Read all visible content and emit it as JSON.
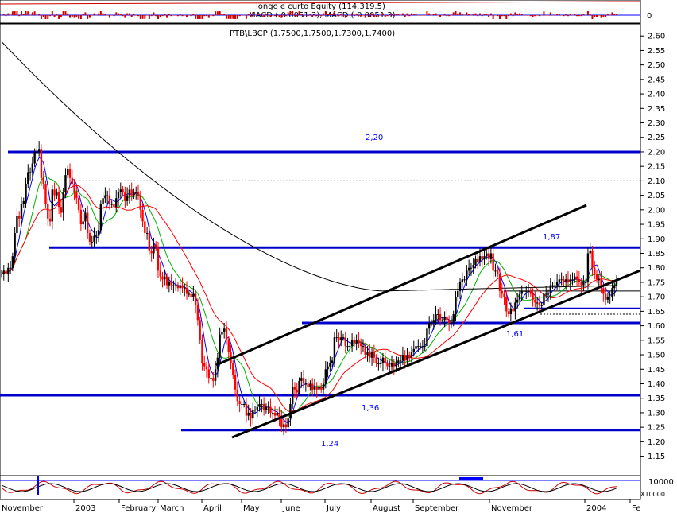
{
  "top_panel": {
    "title": "longo e curto Equity (114.319.5)",
    "subtitle": "MACD (-0.0051 3), MACD (-0.0051 3)",
    "zero_label": "0"
  },
  "bottom_panel": {
    "label_main": "10000",
    "label_sub": "X10000"
  },
  "chart_data": {
    "type": "candlestick",
    "title": "PTB\\LBCP (1.7500,1.7500,1.7300,1.7400)",
    "ylim": [
      1.15,
      2.63
    ],
    "y_ticks": [
      "2.60",
      "2.55",
      "2.50",
      "2.45",
      "2.40",
      "2.35",
      "2.30",
      "2.25",
      "2.20",
      "2.15",
      "2.10",
      "2.05",
      "2.00",
      "1.95",
      "1.90",
      "1.85",
      "1.80",
      "1.75",
      "1.70",
      "1.65",
      "1.60",
      "1.55",
      "1.50",
      "1.45",
      "1.40",
      "1.35",
      "1.30",
      "1.25",
      "1.20",
      "1.15"
    ],
    "x_ticks": [
      "November",
      "2003",
      "February",
      "March",
      "April",
      "May",
      "June",
      "July",
      "August",
      "September",
      "November",
      "2004",
      "Fe"
    ],
    "close": [
      1.78,
      1.79,
      1.78,
      1.8,
      1.8,
      1.84,
      1.92,
      1.98,
      1.97,
      2.02,
      2.03,
      2.09,
      2.13,
      2.13,
      2.16,
      2.2,
      2.2,
      2.21,
      2.11,
      2.09,
      2.02,
      1.97,
      1.96,
      2.07,
      2.05,
      2.06,
      2.01,
      1.99,
      2.06,
      2.12,
      2.14,
      2.11,
      2.09,
      2.06,
      2.04,
      2.0,
      1.95,
      1.96,
      1.99,
      1.92,
      1.89,
      1.89,
      1.91,
      1.91,
      1.93,
      2.02,
      2.04,
      2.05,
      2.05,
      2.02,
      2.02,
      2.01,
      2.04,
      2.06,
      2.07,
      2.06,
      2.03,
      2.05,
      2.07,
      2.05,
      2.06,
      2.06,
      2.05,
      2.0,
      1.96,
      1.92,
      1.92,
      1.86,
      1.85,
      1.88,
      1.87,
      1.79,
      1.77,
      1.76,
      1.77,
      1.74,
      1.75,
      1.74,
      1.74,
      1.74,
      1.73,
      1.74,
      1.73,
      1.73,
      1.71,
      1.71,
      1.7,
      1.71,
      1.67,
      1.62,
      1.55,
      1.47,
      1.46,
      1.45,
      1.42,
      1.42,
      1.41,
      1.45,
      1.49,
      1.57,
      1.58,
      1.59,
      1.55,
      1.51,
      1.47,
      1.43,
      1.38,
      1.34,
      1.33,
      1.33,
      1.33,
      1.29,
      1.3,
      1.28,
      1.31,
      1.31,
      1.32,
      1.33,
      1.33,
      1.31,
      1.32,
      1.32,
      1.3,
      1.3,
      1.29,
      1.3,
      1.28,
      1.25,
      1.26,
      1.25,
      1.28,
      1.33,
      1.39,
      1.38,
      1.37,
      1.41,
      1.42,
      1.4,
      1.4,
      1.39,
      1.4,
      1.38,
      1.39,
      1.38,
      1.39,
      1.38,
      1.4,
      1.45,
      1.46,
      1.47,
      1.48,
      1.56,
      1.56,
      1.55,
      1.56,
      1.56,
      1.53,
      1.53,
      1.53,
      1.55,
      1.54,
      1.55,
      1.54,
      1.53,
      1.53,
      1.5,
      1.51,
      1.49,
      1.51,
      1.49,
      1.47,
      1.47,
      1.47,
      1.49,
      1.47,
      1.46,
      1.46,
      1.47,
      1.46,
      1.47,
      1.48,
      1.48,
      1.5,
      1.48,
      1.5,
      1.49,
      1.51,
      1.52,
      1.53,
      1.53,
      1.53,
      1.53,
      1.53,
      1.59,
      1.61,
      1.61,
      1.62,
      1.64,
      1.64,
      1.62,
      1.62,
      1.63,
      1.62,
      1.61,
      1.61,
      1.64,
      1.7,
      1.72,
      1.75,
      1.76,
      1.76,
      1.79,
      1.8,
      1.8,
      1.81,
      1.83,
      1.82,
      1.84,
      1.83,
      1.84,
      1.85,
      1.83,
      1.85,
      1.79,
      1.79,
      1.78,
      1.72,
      1.71,
      1.7,
      1.65,
      1.64,
      1.66,
      1.65,
      1.68,
      1.69,
      1.71,
      1.72,
      1.72,
      1.72,
      1.72,
      1.71,
      1.69,
      1.68,
      1.68,
      1.67,
      1.67,
      1.71,
      1.71,
      1.71,
      1.74,
      1.74,
      1.74,
      1.75,
      1.76,
      1.76,
      1.75,
      1.76,
      1.75,
      1.76,
      1.76,
      1.77,
      1.76,
      1.75,
      1.74,
      1.75,
      1.75,
      1.85,
      1.86,
      1.8,
      1.78,
      1.76,
      1.76,
      1.73,
      1.71,
      1.69,
      1.7,
      1.7,
      1.73,
      1.74,
      1.75
    ],
    "levels": [
      {
        "value": 2.2,
        "label": "2,20"
      },
      {
        "value": 1.87,
        "label": "1,87"
      },
      {
        "value": 1.61,
        "label": "1,61"
      },
      {
        "value": 1.36,
        "label": "1,36"
      },
      {
        "value": 1.24,
        "label": "1,24"
      }
    ],
    "dotted_levels": [
      2.1,
      1.64
    ],
    "short_levels": [
      1.72,
      1.66
    ],
    "channel": {
      "upper": [
        [
          1.48,
          1.48
        ],
        [
          2.03,
          2.03
        ]
      ],
      "lower": [
        [
          1.23
        ],
        [
          1.81
        ]
      ]
    },
    "series": [
      {
        "name": "",
        "color": "#000000"
      },
      {
        "name": "",
        "color": "#ff0000"
      },
      {
        "name": "",
        "color": "#00b000"
      },
      {
        "name": "",
        "color": "#0000ff"
      }
    ],
    "colors": {
      "up": "#000000",
      "down": "#ff0000",
      "level": "#0000ff"
    }
  }
}
